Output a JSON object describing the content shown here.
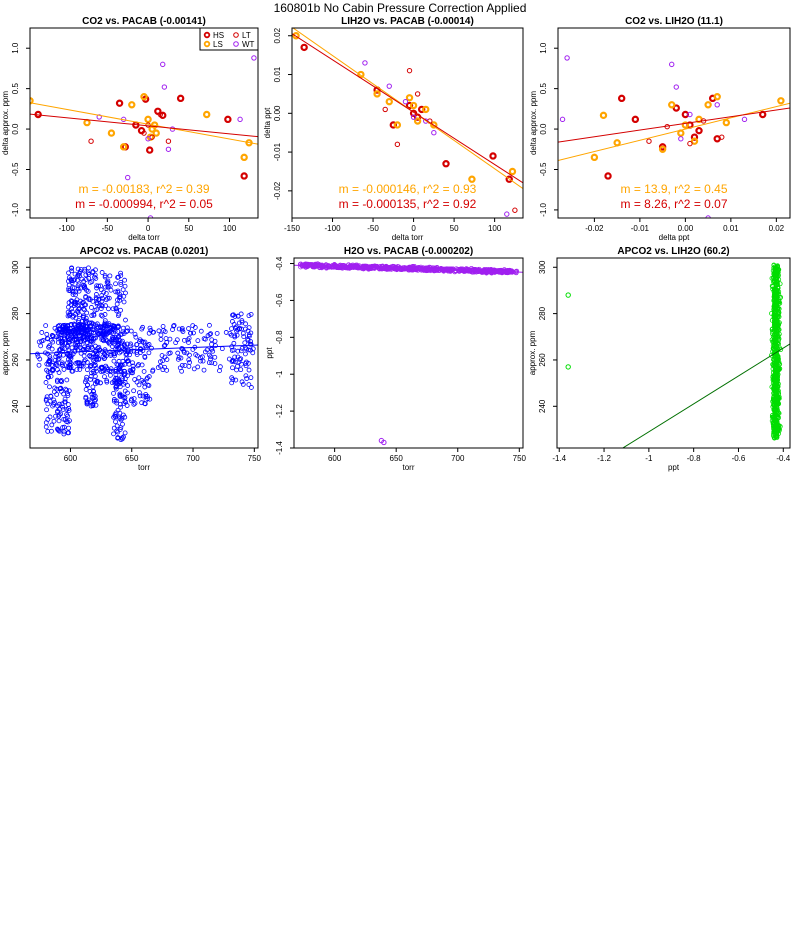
{
  "figure_title": "160801b   No Cabin Pressure Correction Applied",
  "colors": {
    "HS": "#d40000",
    "LS": "#ffa500",
    "LT": "#d40000",
    "WT": "#a020f0",
    "blue": "#0000ff",
    "green": "#00dd00",
    "dark_green": "#007000",
    "purple": "#a020f0"
  },
  "chart_data": [
    {
      "id": "p1",
      "type": "scatter",
      "title": "CO2 vs. PACAB (-0.00141)",
      "xlabel": "delta torr",
      "ylabel": "delta approx. ppm",
      "xlim": [
        -145,
        135
      ],
      "ylim": [
        -1.1,
        1.25
      ],
      "xticks": [
        -150,
        -100,
        -50,
        0,
        50,
        100
      ],
      "yticks": [
        -1.0,
        -0.5,
        0.0,
        0.5,
        1.0
      ],
      "ytick_labels": [
        "-1.0",
        "-0.5",
        "0.0",
        "0.5",
        "1.0"
      ],
      "legend": {
        "position": "top-right",
        "entries": [
          {
            "label": "HS",
            "color": "#d40000",
            "style": "thick"
          },
          {
            "label": "LT",
            "color": "#d40000",
            "style": "thin"
          },
          {
            "label": "LS",
            "color": "#ffa500",
            "style": "thick"
          },
          {
            "label": "WT",
            "color": "#a020f0",
            "style": "thin"
          }
        ]
      },
      "series": [
        {
          "group": "HS",
          "color": "#d40000",
          "style": "thick",
          "points": [
            [
              -135,
              0.18
            ],
            [
              -35,
              0.32
            ],
            [
              -28,
              -0.22
            ],
            [
              -15,
              0.05
            ],
            [
              -8,
              -0.02
            ],
            [
              -3,
              0.37
            ],
            [
              2,
              -0.26
            ],
            [
              12,
              0.22
            ],
            [
              18,
              0.17
            ],
            [
              40,
              0.38
            ],
            [
              98,
              0.12
            ],
            [
              118,
              -0.58
            ]
          ]
        },
        {
          "group": "LS",
          "color": "#ffa500",
          "style": "thick",
          "points": [
            [
              -145,
              0.35
            ],
            [
              -75,
              0.08
            ],
            [
              -45,
              -0.05
            ],
            [
              -30,
              -0.22
            ],
            [
              -20,
              0.3
            ],
            [
              -5,
              0.4
            ],
            [
              0,
              0.12
            ],
            [
              3,
              -0.1
            ],
            [
              5,
              0.0
            ],
            [
              10,
              -0.05
            ],
            [
              8,
              0.05
            ],
            [
              72,
              0.18
            ],
            [
              118,
              -0.35
            ],
            [
              124,
              -0.17
            ]
          ]
        },
        {
          "group": "LT",
          "color": "#d40000",
          "style": "thin",
          "points": [
            [
              -70,
              -0.15
            ],
            [
              -10,
              1.3
            ],
            [
              -5,
              -0.05
            ],
            [
              0,
              0.05
            ],
            [
              5,
              -0.1
            ],
            [
              15,
              0.18
            ],
            [
              25,
              -0.15
            ]
          ]
        },
        {
          "group": "WT",
          "color": "#a020f0",
          "style": "thin",
          "points": [
            [
              -60,
              0.15
            ],
            [
              -30,
              0.12
            ],
            [
              -25,
              -0.6
            ],
            [
              0,
              -0.12
            ],
            [
              18,
              0.8
            ],
            [
              20,
              0.52
            ],
            [
              25,
              -0.25
            ],
            [
              30,
              0.0
            ],
            [
              113,
              0.12
            ],
            [
              130,
              0.88
            ],
            [
              3,
              -1.1
            ]
          ]
        }
      ],
      "fit_lines": [
        {
          "color": "#ffa500",
          "slope": -0.00183,
          "intercept": 0.06
        },
        {
          "color": "#d40000",
          "slope": -0.000994,
          "intercept": 0.04
        }
      ],
      "annotations": [
        {
          "text": "m = -0.00183, r^2 = 0.39",
          "color": "#ffa500"
        },
        {
          "text": "m = -0.000994, r^2 = 0.05",
          "color": "#d40000"
        }
      ]
    },
    {
      "id": "p2",
      "type": "scatter",
      "title": "LIH2O vs. PACAB (-0.00014)",
      "xlabel": "delta torr",
      "ylabel": "delta ppt",
      "xlim": [
        -150,
        135
      ],
      "ylim": [
        -0.027,
        0.022
      ],
      "xticks": [
        -150,
        -100,
        -50,
        0,
        50,
        100
      ],
      "yticks": [
        -0.02,
        -0.01,
        0.0,
        0.01,
        0.02
      ],
      "ytick_labels": [
        "-0.02",
        "-0.01",
        "0.00",
        "0.01",
        "0.02"
      ],
      "series": [
        {
          "group": "HS",
          "color": "#d40000",
          "style": "thick",
          "points": [
            [
              -135,
              0.017
            ],
            [
              -45,
              0.006
            ],
            [
              -25,
              -0.003
            ],
            [
              -5,
              0.002
            ],
            [
              0,
              0.0
            ],
            [
              5,
              -0.001
            ],
            [
              10,
              0.001
            ],
            [
              40,
              -0.013
            ],
            [
              98,
              -0.011
            ],
            [
              118,
              -0.017
            ]
          ]
        },
        {
          "group": "LS",
          "color": "#ffa500",
          "style": "thick",
          "points": [
            [
              -145,
              0.02
            ],
            [
              -65,
              0.01
            ],
            [
              -45,
              0.005
            ],
            [
              -30,
              0.003
            ],
            [
              -20,
              -0.003
            ],
            [
              -5,
              0.004
            ],
            [
              0,
              0.002
            ],
            [
              5,
              -0.002
            ],
            [
              15,
              0.001
            ],
            [
              25,
              -0.003
            ],
            [
              72,
              -0.017
            ],
            [
              122,
              -0.015
            ]
          ]
        },
        {
          "group": "LT",
          "color": "#d40000",
          "style": "thin",
          "points": [
            [
              -35,
              0.001
            ],
            [
              -20,
              -0.008
            ],
            [
              -5,
              0.011
            ],
            [
              5,
              0.005
            ],
            [
              20,
              -0.002
            ],
            [
              125,
              -0.025
            ]
          ]
        },
        {
          "group": "WT",
          "color": "#a020f0",
          "style": "thin",
          "points": [
            [
              -60,
              0.013
            ],
            [
              -30,
              0.007
            ],
            [
              -10,
              0.003
            ],
            [
              0,
              -0.001
            ],
            [
              15,
              -0.002
            ],
            [
              25,
              -0.005
            ],
            [
              115,
              -0.026
            ]
          ]
        }
      ],
      "fit_lines": [
        {
          "color": "#ffa500",
          "slope": -0.000146,
          "intercept": 0.0003
        },
        {
          "color": "#d40000",
          "slope": -0.000135,
          "intercept": 0.0003
        }
      ],
      "annotations": [
        {
          "text": "m = -0.000146, r^2 = 0.93",
          "color": "#ffa500"
        },
        {
          "text": "m = -0.000135, r^2 = 0.92",
          "color": "#d40000"
        }
      ]
    },
    {
      "id": "p3",
      "type": "scatter",
      "title": "CO2 vs. LIH2O (11.1)",
      "xlabel": "delta ppt",
      "ylabel": "delta approx. ppm",
      "xlim": [
        -0.028,
        0.023
      ],
      "ylim": [
        -1.1,
        1.25
      ],
      "xticks": [
        -0.02,
        -0.01,
        0.0,
        0.01,
        0.02
      ],
      "xtick_labels": [
        "-0.02",
        "-0.01",
        "0.00",
        "0.01",
        "0.02"
      ],
      "yticks": [
        -1.0,
        -0.5,
        0.0,
        0.5,
        1.0
      ],
      "ytick_labels": [
        "-1.0",
        "-0.5",
        "0.0",
        "0.5",
        "1.0"
      ],
      "series": [
        {
          "group": "HS",
          "color": "#d40000",
          "style": "thick",
          "points": [
            [
              -0.017,
              -0.58
            ],
            [
              -0.014,
              0.38
            ],
            [
              -0.011,
              0.12
            ],
            [
              -0.005,
              -0.22
            ],
            [
              -0.002,
              0.26
            ],
            [
              0.0,
              0.18
            ],
            [
              0.001,
              0.05
            ],
            [
              0.002,
              -0.1
            ],
            [
              0.003,
              -0.02
            ],
            [
              0.006,
              0.38
            ],
            [
              0.007,
              -0.12
            ],
            [
              0.017,
              0.18
            ]
          ]
        },
        {
          "group": "LS",
          "color": "#ffa500",
          "style": "thick",
          "points": [
            [
              -0.02,
              -0.35
            ],
            [
              -0.018,
              0.17
            ],
            [
              -0.015,
              -0.17
            ],
            [
              -0.005,
              -0.25
            ],
            [
              -0.003,
              0.3
            ],
            [
              -0.001,
              -0.05
            ],
            [
              0.0,
              0.05
            ],
            [
              0.002,
              -0.15
            ],
            [
              0.003,
              0.12
            ],
            [
              0.005,
              0.3
            ],
            [
              0.007,
              0.4
            ],
            [
              0.009,
              0.08
            ],
            [
              0.021,
              0.35
            ]
          ]
        },
        {
          "group": "LT",
          "color": "#d40000",
          "style": "thin",
          "points": [
            [
              -0.008,
              -0.15
            ],
            [
              -0.004,
              0.03
            ],
            [
              0.001,
              -0.18
            ],
            [
              0.004,
              0.1
            ],
            [
              0.008,
              -0.1
            ],
            [
              0.011,
              1.3
            ]
          ]
        },
        {
          "group": "WT",
          "color": "#a020f0",
          "style": "thin",
          "points": [
            [
              -0.026,
              0.88
            ],
            [
              -0.027,
              0.12
            ],
            [
              -0.003,
              0.8
            ],
            [
              -0.002,
              0.52
            ],
            [
              -0.001,
              -0.12
            ],
            [
              0.001,
              0.18
            ],
            [
              0.005,
              -1.1
            ],
            [
              0.007,
              0.3
            ],
            [
              0.013,
              0.12
            ]
          ]
        }
      ],
      "fit_lines": [
        {
          "color": "#ffa500",
          "slope": 13.9,
          "intercept": 0.0
        },
        {
          "color": "#d40000",
          "slope": 8.26,
          "intercept": 0.07
        }
      ],
      "annotations": [
        {
          "text": "m = 13.9, r^2 = 0.45",
          "color": "#ffa500"
        },
        {
          "text": "m = 8.26, r^2 = 0.07",
          "color": "#d40000"
        }
      ]
    },
    {
      "id": "p4",
      "type": "scatter",
      "title": "APCO2 vs. PACAB (0.0201)",
      "xlabel": "torr",
      "ylabel": "approx. ppm",
      "xlim": [
        567,
        753
      ],
      "ylim": [
        222,
        304
      ],
      "xticks": [
        600,
        650,
        700,
        750
      ],
      "yticks": [
        240,
        260,
        280,
        300
      ],
      "series": [
        {
          "group": "APCO2",
          "color": "#0000ff",
          "style": "dense",
          "clusters": [
            {
              "x": [
                572,
                750
              ],
              "y": [
                255,
                275
              ],
              "n": 260
            },
            {
              "x": [
                580,
                600
              ],
              "y": [
                228,
                275
              ],
              "n": 150
            },
            {
              "x": [
                598,
                612
              ],
              "y": [
                255,
                301
              ],
              "n": 160
            },
            {
              "x": [
                612,
                622
              ],
              "y": [
                240,
                300
              ],
              "n": 120
            },
            {
              "x": [
                622,
                645
              ],
              "y": [
                250,
                298
              ],
              "n": 150
            },
            {
              "x": [
                635,
                645
              ],
              "y": [
                225,
                260
              ],
              "n": 80
            },
            {
              "x": [
                590,
                640
              ],
              "y": [
                268,
                276
              ],
              "n": 150
            },
            {
              "x": [
                645,
                665
              ],
              "y": [
                240,
                268
              ],
              "n": 70
            },
            {
              "x": [
                730,
                748
              ],
              "y": [
                248,
                280
              ],
              "n": 60
            }
          ]
        }
      ],
      "fit_lines": [
        {
          "color": "#0000ff",
          "slope": 0.0201,
          "intercept": 251.3
        }
      ]
    },
    {
      "id": "p5",
      "type": "scatter",
      "title": "H2O vs. PACAB (-0.000202)",
      "xlabel": "torr",
      "ylabel": "ppt",
      "xlim": [
        567,
        753
      ],
      "ylim": [
        -1.4,
        -0.37
      ],
      "xticks": [
        600,
        650,
        700,
        750
      ],
      "yticks": [
        -1.4,
        -1.2,
        -1.0,
        -0.8,
        -0.6,
        -0.4
      ],
      "series": [
        {
          "group": "H2O",
          "color": "#a020f0",
          "style": "dense",
          "band": {
            "x": [
              572,
              748
            ],
            "y_start": -0.41,
            "y_end": -0.445,
            "spread": 0.015,
            "n": 700
          }
        },
        {
          "group": "outliers",
          "color": "#a020f0",
          "style": "thin",
          "points": [
            [
              638,
              -1.36
            ],
            [
              640,
              -1.37
            ]
          ]
        }
      ],
      "fit_lines": [
        {
          "color": "#a020f0",
          "slope": -0.000202,
          "intercept": -0.295
        }
      ]
    },
    {
      "id": "p6",
      "type": "scatter",
      "title": "APCO2 vs. LIH2O (60.2)",
      "xlabel": "ppt",
      "ylabel": "approx. ppm",
      "xlim": [
        -1.41,
        -0.37
      ],
      "ylim": [
        222,
        304
      ],
      "xticks": [
        -1.4,
        -1.2,
        -1.0,
        -0.8,
        -0.6,
        -0.4
      ],
      "yticks": [
        240,
        260,
        280,
        300
      ],
      "series": [
        {
          "group": "APCO2",
          "color": "#00dd00",
          "style": "dense",
          "band": {
            "x": [
              -0.455,
              -0.41
            ],
            "y": [
              226,
              301
            ],
            "n": 700
          }
        },
        {
          "group": "outliers",
          "color": "#00dd00",
          "style": "thin",
          "points": [
            [
              -1.36,
              288
            ],
            [
              -1.36,
              257
            ]
          ]
        }
      ],
      "fit_lines": [
        {
          "color": "#007000",
          "slope": 60.2,
          "intercept": 289.2
        }
      ]
    }
  ]
}
